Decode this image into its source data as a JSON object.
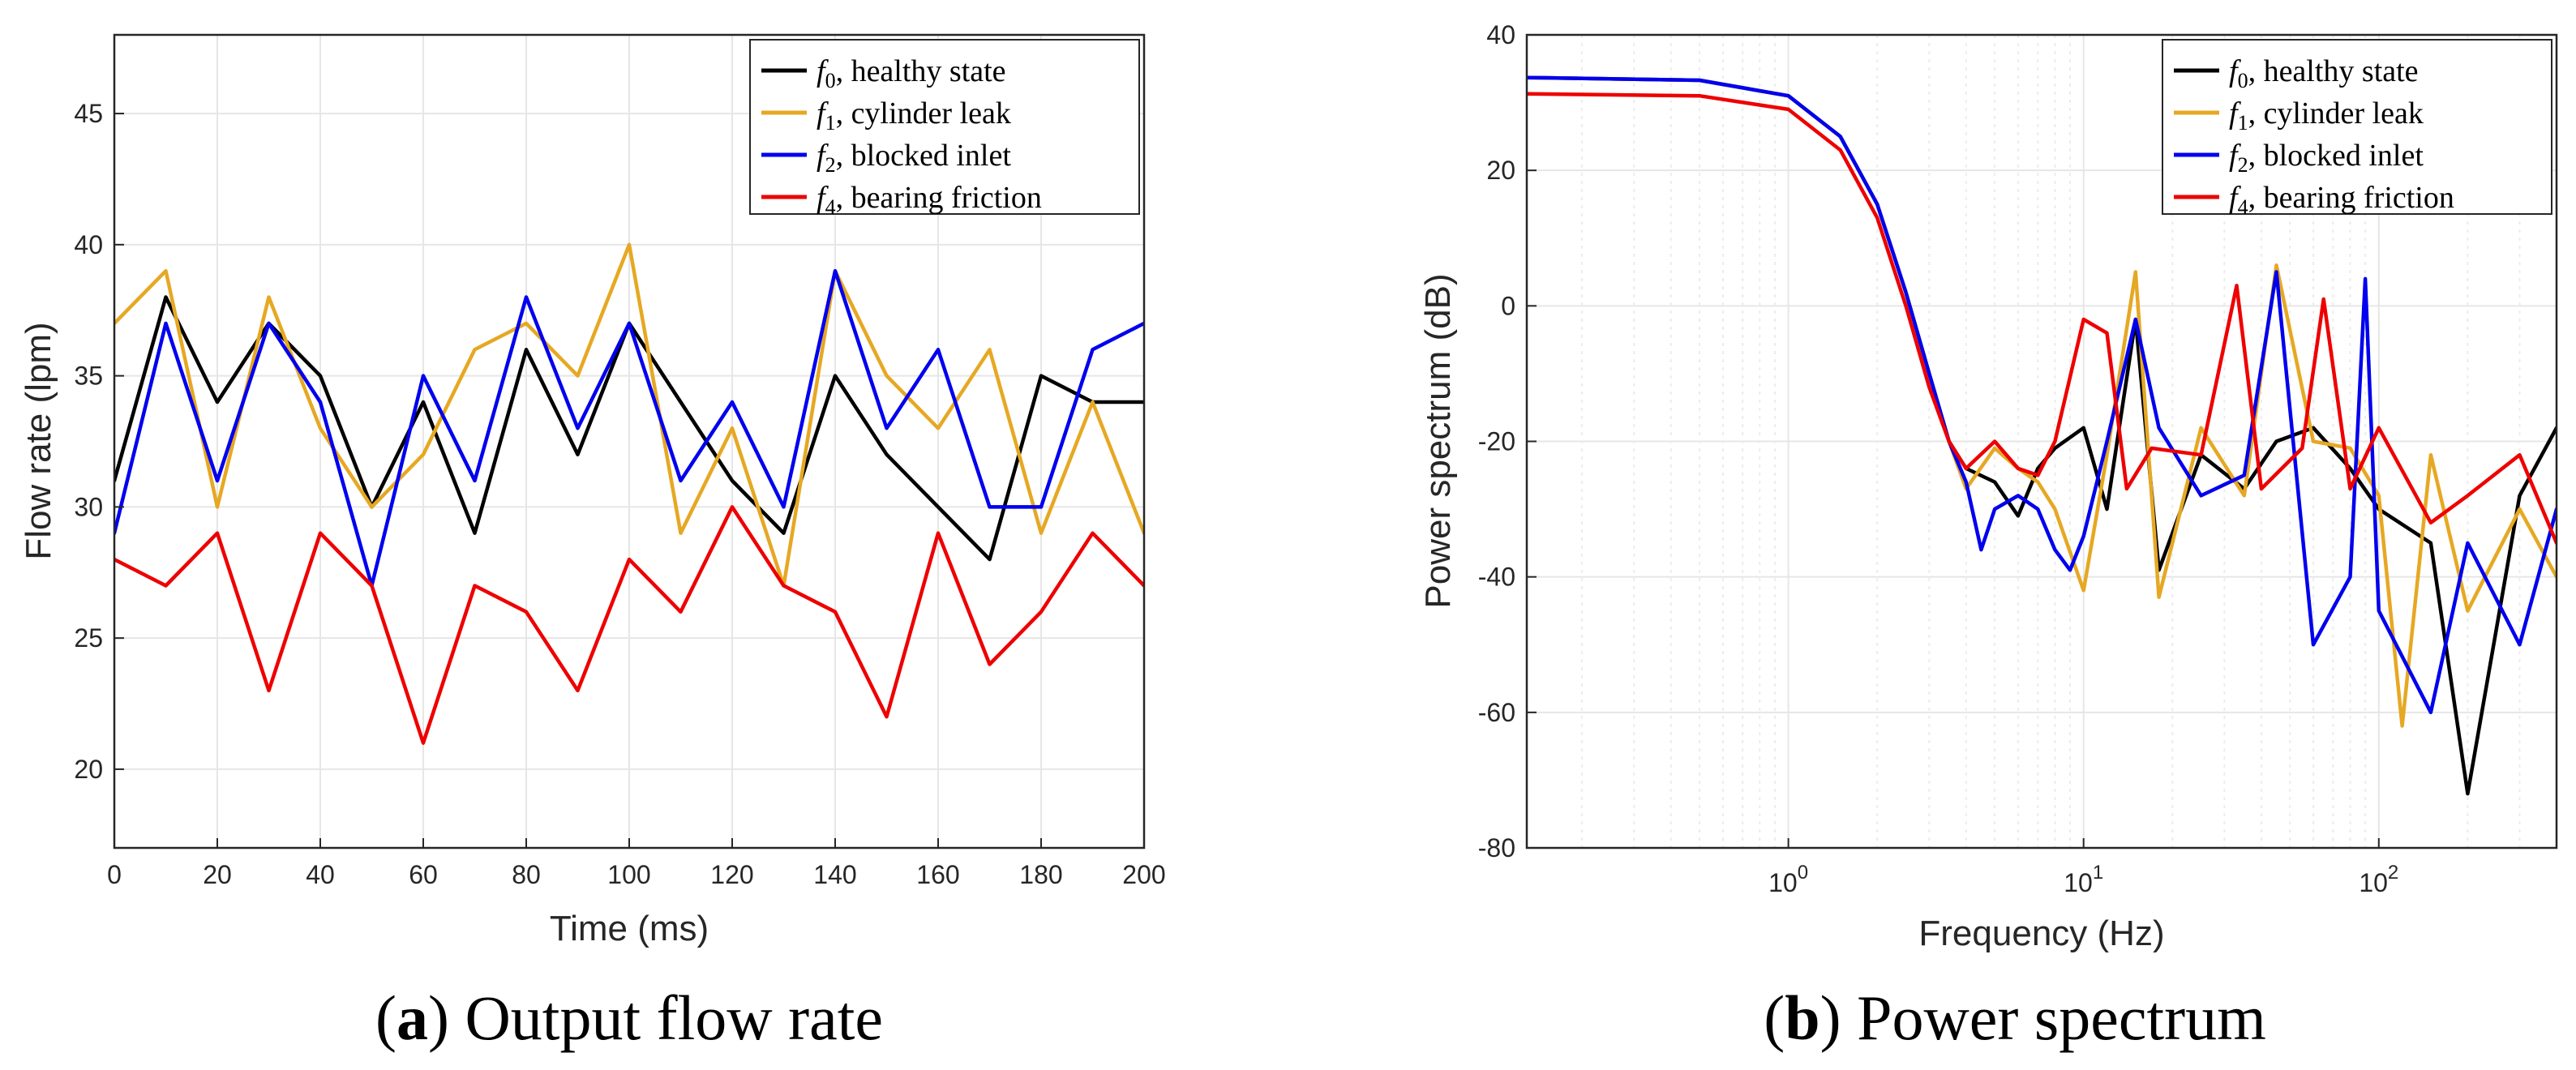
{
  "chart_data": [
    {
      "type": "line",
      "caption_letter": "a",
      "caption_text": "Output flow rate",
      "xlabel": "Time (ms)",
      "ylabel": "Flow rate (lpm)",
      "xlim": [
        0,
        200
      ],
      "ylim": [
        17,
        48
      ],
      "xticks": [
        "0",
        "20",
        "40",
        "60",
        "80",
        "100",
        "120",
        "140",
        "160",
        "180",
        "200"
      ],
      "yticks": [
        "20",
        "25",
        "30",
        "35",
        "40",
        "45"
      ],
      "grid": true,
      "legend_position": "top-right",
      "x": [
        0,
        10,
        20,
        30,
        40,
        50,
        60,
        70,
        80,
        90,
        100,
        110,
        120,
        130,
        140,
        150,
        160,
        170,
        180,
        190,
        200
      ],
      "series": [
        {
          "sym": "f",
          "sub": "0",
          "label": ", healthy state",
          "color": "#000000",
          "values": [
            31,
            38,
            34,
            37,
            35,
            30,
            34,
            29,
            36,
            32,
            37,
            34,
            31,
            29,
            35,
            32,
            30,
            28,
            35,
            34,
            34
          ]
        },
        {
          "sym": "f",
          "sub": "1",
          "label": ", cylinder leak",
          "color": "#e6a823",
          "values": [
            37,
            39,
            30,
            38,
            33,
            30,
            32,
            36,
            37,
            35,
            40,
            29,
            33,
            27,
            39,
            35,
            33,
            36,
            29,
            34,
            29
          ]
        },
        {
          "sym": "f",
          "sub": "2",
          "label": ", blocked inlet",
          "color": "#0000ee",
          "values": [
            29,
            37,
            31,
            37,
            34,
            27,
            35,
            31,
            38,
            33,
            37,
            31,
            34,
            30,
            39,
            33,
            36,
            30,
            30,
            36,
            37
          ]
        },
        {
          "sym": "f",
          "sub": "4",
          "label": ", bearing friction",
          "color": "#ee0000",
          "values": [
            28,
            27,
            29,
            23,
            29,
            27,
            21,
            27,
            26,
            23,
            28,
            26,
            30,
            27,
            26,
            22,
            29,
            24,
            26,
            29,
            27
          ]
        }
      ]
    },
    {
      "type": "line",
      "caption_letter": "b",
      "caption_text": "Power spectrum",
      "xlabel": "Frequency (Hz)",
      "ylabel": "Power spectrum (dB)",
      "xscale": "log",
      "xlim": [
        0.13,
        400
      ],
      "ylim": [
        -80,
        40
      ],
      "xticks": [
        {
          "base": "10",
          "exp": "0",
          "value": 1
        },
        {
          "base": "10",
          "exp": "1",
          "value": 10
        },
        {
          "base": "10",
          "exp": "2",
          "value": 100
        }
      ],
      "yticks": [
        "-80",
        "-60",
        "-40",
        "-20",
        "0",
        "20",
        "40"
      ],
      "grid": true,
      "legend_position": "top-right",
      "series": [
        {
          "sym": "f",
          "sub": "0",
          "label": ", healthy state",
          "color": "#000000",
          "x": [
            0.13,
            0.5,
            1,
            1.5,
            2,
            2.5,
            3,
            3.5,
            4,
            5,
            6,
            7,
            8,
            10,
            12,
            15,
            18,
            25,
            35,
            45,
            60,
            80,
            100,
            150,
            200,
            300,
            400
          ],
          "values": [
            33.7,
            33.3,
            31,
            25,
            15,
            2,
            -10,
            -20,
            -24,
            -26,
            -31,
            -24,
            -21,
            -18,
            -30,
            -2,
            -39,
            -22,
            -27,
            -20,
            -18,
            -24,
            -30,
            -35,
            -72,
            -28,
            -18
          ]
        },
        {
          "sym": "f",
          "sub": "1",
          "label": ", cylinder leak",
          "color": "#e6a823",
          "x": [
            0.13,
            0.5,
            1,
            1.5,
            2,
            2.5,
            3,
            3.5,
            4,
            5,
            6,
            7,
            8,
            10,
            12,
            15,
            18,
            25,
            35,
            45,
            60,
            80,
            100,
            120,
            150,
            200,
            300,
            400
          ],
          "values": [
            33.7,
            33.3,
            31,
            25,
            15,
            2,
            -10,
            -20,
            -27,
            -21,
            -24,
            -26,
            -30,
            -42,
            -22,
            5,
            -43,
            -18,
            -28,
            6,
            -20,
            -21,
            -28,
            -62,
            -22,
            -45,
            -30,
            -40
          ]
        },
        {
          "sym": "f",
          "sub": "2",
          "label": ", blocked inlet",
          "color": "#0000ee",
          "x": [
            0.13,
            0.5,
            1,
            1.5,
            2,
            2.5,
            3,
            3.5,
            4,
            4.5,
            5,
            6,
            7,
            8,
            9,
            10,
            12,
            15,
            18,
            25,
            35,
            45,
            60,
            80,
            90,
            100,
            150,
            200,
            300,
            400
          ],
          "values": [
            33.7,
            33.3,
            31,
            25,
            15,
            2,
            -10,
            -20,
            -26,
            -36,
            -30,
            -28,
            -30,
            -36,
            -39,
            -34,
            -20,
            -2,
            -18,
            -28,
            -25,
            5,
            -50,
            -40,
            4,
            -45,
            -60,
            -35,
            -50,
            -30
          ]
        },
        {
          "sym": "f",
          "sub": "4",
          "label": ", bearing friction",
          "color": "#ee0000",
          "x": [
            0.13,
            0.5,
            1,
            1.5,
            2,
            2.5,
            3,
            3.5,
            4,
            5,
            6,
            7,
            8,
            10,
            12,
            14,
            17,
            25,
            33,
            40,
            55,
            65,
            80,
            100,
            150,
            200,
            300,
            400
          ],
          "values": [
            31.3,
            31,
            29,
            23,
            13,
            0,
            -12,
            -20,
            -24,
            -20,
            -24,
            -25,
            -20,
            -2,
            -4,
            -27,
            -21,
            -22,
            3,
            -27,
            -21,
            1,
            -27,
            -18,
            -32,
            -28,
            -22,
            -35
          ]
        }
      ]
    }
  ]
}
